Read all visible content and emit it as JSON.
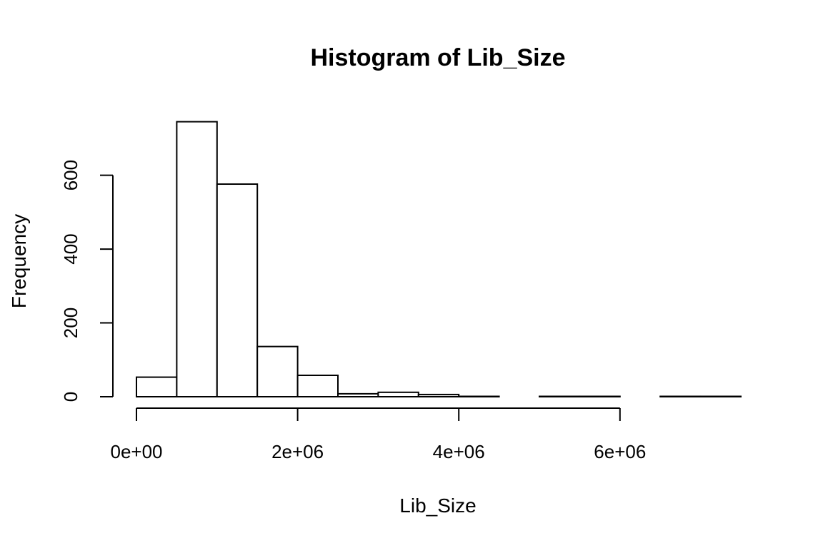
{
  "chart_data": {
    "type": "bar",
    "title": "Histogram of Lib_Size",
    "xlabel": "Lib_Size",
    "ylabel": "Frequency",
    "bin_width": 500000,
    "bins": [
      {
        "start": 0,
        "end": 500000,
        "count": 53
      },
      {
        "start": 500000,
        "end": 1000000,
        "count": 745
      },
      {
        "start": 1000000,
        "end": 1500000,
        "count": 576
      },
      {
        "start": 1500000,
        "end": 2000000,
        "count": 136
      },
      {
        "start": 2000000,
        "end": 2500000,
        "count": 58
      },
      {
        "start": 2500000,
        "end": 3000000,
        "count": 8
      },
      {
        "start": 3000000,
        "end": 3500000,
        "count": 12
      },
      {
        "start": 3500000,
        "end": 4000000,
        "count": 6
      },
      {
        "start": 4000000,
        "end": 4500000,
        "count": 1
      },
      {
        "start": 4500000,
        "end": 5000000,
        "count": 0
      },
      {
        "start": 5000000,
        "end": 5500000,
        "count": 1
      },
      {
        "start": 5500000,
        "end": 6000000,
        "count": 1
      },
      {
        "start": 6000000,
        "end": 6500000,
        "count": 0
      },
      {
        "start": 6500000,
        "end": 7000000,
        "count": 1
      },
      {
        "start": 7000000,
        "end": 7500000,
        "count": 1
      }
    ],
    "xlim": [
      0,
      7500000
    ],
    "ylim": [
      0,
      750
    ],
    "x_ticks": [
      {
        "value": 0,
        "label": "0e+00"
      },
      {
        "value": 2000000,
        "label": "2e+06"
      },
      {
        "value": 4000000,
        "label": "4e+06"
      },
      {
        "value": 6000000,
        "label": "6e+06"
      }
    ],
    "y_ticks": [
      {
        "value": 0,
        "label": "0"
      },
      {
        "value": 200,
        "label": "200"
      },
      {
        "value": 400,
        "label": "400"
      },
      {
        "value": 600,
        "label": "600"
      }
    ],
    "grid": false,
    "legend": "none"
  }
}
